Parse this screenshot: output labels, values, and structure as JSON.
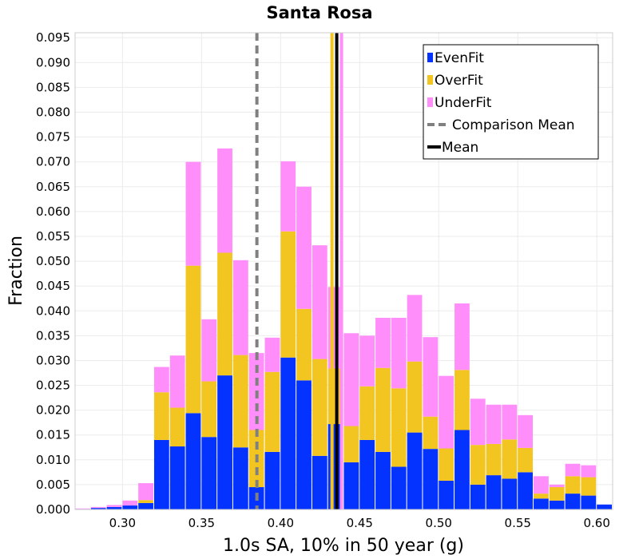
{
  "chart_data": {
    "type": "bar",
    "stacked": true,
    "title": "Santa Rosa",
    "xlabel": "1.0s SA, 10% in 50 year (g)",
    "ylabel": "Fraction",
    "xlim": [
      0.27,
      0.61
    ],
    "ylim": [
      0,
      0.096
    ],
    "bin_width": 0.01,
    "x_ticks": [
      "0.30",
      "0.35",
      "0.40",
      "0.45",
      "0.50",
      "0.55",
      "0.60"
    ],
    "y_ticks": [
      "0.000",
      "0.005",
      "0.010",
      "0.015",
      "0.020",
      "0.025",
      "0.030",
      "0.035",
      "0.040",
      "0.045",
      "0.050",
      "0.055",
      "0.060",
      "0.065",
      "0.070",
      "0.075",
      "0.080",
      "0.085",
      "0.090",
      "0.095"
    ],
    "bin_starts": [
      0.27,
      0.28,
      0.29,
      0.3,
      0.31,
      0.32,
      0.33,
      0.34,
      0.35,
      0.36,
      0.37,
      0.38,
      0.39,
      0.4,
      0.41,
      0.42,
      0.43,
      0.44,
      0.45,
      0.46,
      0.47,
      0.48,
      0.49,
      0.5,
      0.51,
      0.52,
      0.53,
      0.54,
      0.55,
      0.56,
      0.57,
      0.58,
      0.59,
      0.6
    ],
    "series": [
      {
        "name": "EvenFit",
        "color": "#0433ff",
        "values": [
          0.0001,
          0.0003,
          0.0005,
          0.0008,
          0.0013,
          0.014,
          0.0127,
          0.0194,
          0.0146,
          0.027,
          0.0125,
          0.0045,
          0.0116,
          0.0306,
          0.026,
          0.0108,
          0.0172,
          0.0095,
          0.014,
          0.0116,
          0.0086,
          0.0155,
          0.0122,
          0.0058,
          0.016,
          0.005,
          0.0069,
          0.0062,
          0.0075,
          0.0022,
          0.0018,
          0.0032,
          0.0028,
          0.001
        ]
      },
      {
        "name": "OverFit",
        "color": "#f2c521",
        "values": [
          0,
          0,
          0,
          0,
          0.0006,
          0.0096,
          0.0078,
          0.0297,
          0.0112,
          0.0247,
          0.0186,
          0.0115,
          0.0161,
          0.0254,
          0.0144,
          0.0195,
          0.0112,
          0.0073,
          0.0108,
          0.0169,
          0.0158,
          0.0143,
          0.0065,
          0.0065,
          0.0121,
          0.008,
          0.0063,
          0.0079,
          0.0049,
          0.001,
          0.0027,
          0.0035,
          0.0037,
          0
        ]
      },
      {
        "name": "UnderFit",
        "color": "#ff8dfa",
        "values": [
          0.0001,
          0.0002,
          0.0004,
          0.001,
          0.0034,
          0.0051,
          0.0105,
          0.0209,
          0.0125,
          0.021,
          0.0191,
          0.0155,
          0.0069,
          0.0141,
          0.0246,
          0.0229,
          0.0164,
          0.0187,
          0.0102,
          0.0101,
          0.0142,
          0.0134,
          0.016,
          0.0146,
          0.0134,
          0.0093,
          0.0079,
          0.007,
          0.0066,
          0.0035,
          0.0005,
          0.0025,
          0.0024,
          0
        ]
      }
    ],
    "lines": [
      {
        "name": "Comparison Mean",
        "x": 0.385,
        "color": "#808080",
        "style": "dashed"
      },
      {
        "name": "Mean",
        "x": 0.4355,
        "color": "#000000",
        "style": "solid"
      }
    ],
    "extra_lines": [
      {
        "x": 0.4325,
        "color": "#f2c521"
      },
      {
        "x": 0.4385,
        "color": "#ff8dfa"
      }
    ],
    "legend": {
      "position": "top-right",
      "entries": [
        "EvenFit",
        "OverFit",
        "UnderFit",
        "Comparison Mean",
        "Mean"
      ]
    },
    "grid": true
  }
}
